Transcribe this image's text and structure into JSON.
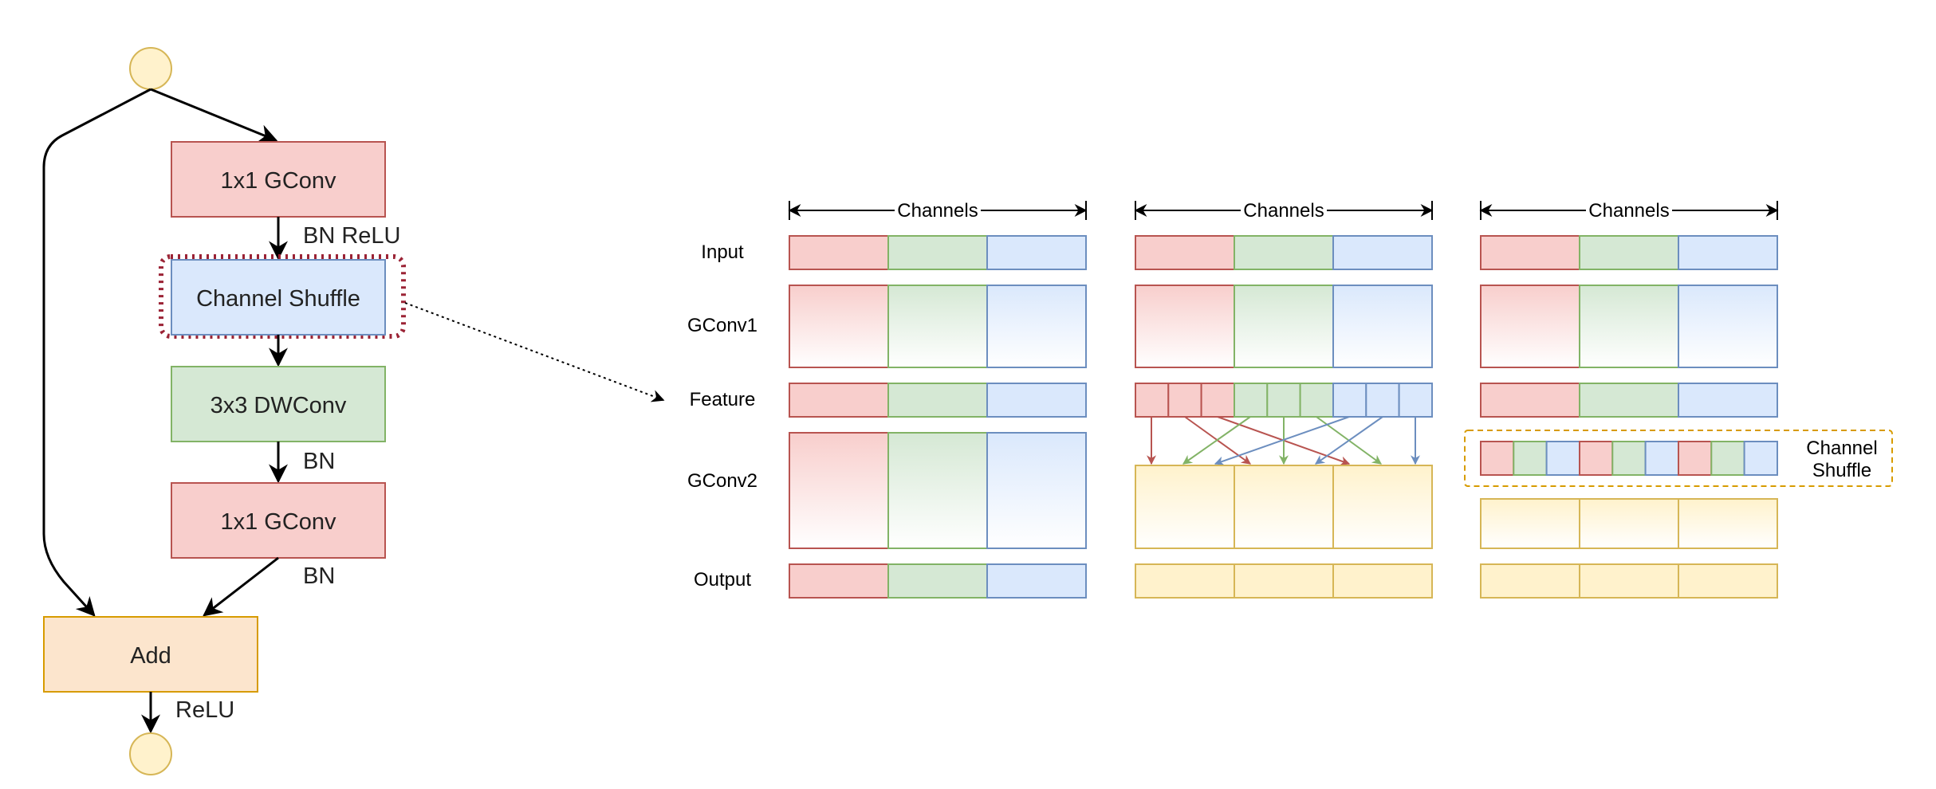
{
  "flow": {
    "gconv1_label": "1x1 GConv",
    "bn_relu_label": "BN ReLU",
    "channel_shuffle_label": "Channel Shuffle",
    "dwconv_label": "3x3 DWConv",
    "bn_label_1": "BN",
    "gconv2_label": "1x1 GConv",
    "bn_label_2": "BN",
    "add_label": "Add",
    "relu_label": "ReLU"
  },
  "rows": {
    "input": "Input",
    "gconv1": "GConv1",
    "feature": "Feature",
    "gconv2": "GConv2",
    "output": "Output"
  },
  "panels": [
    {
      "channels_label": "Channels"
    },
    {
      "channels_label": "Channels"
    },
    {
      "channels_label": "Channels"
    }
  ],
  "shuffle_box": {
    "line1": "Channel",
    "line2": "Shuffle"
  },
  "colors": {
    "red_fill": "#f8cecc",
    "red_stroke": "#b85450",
    "green_fill": "#d5e8d4",
    "green_stroke": "#82b366",
    "blue_fill": "#dae8fc",
    "blue_stroke": "#6c8ebf",
    "yellow_fill": "#fff2cc",
    "yellow_stroke": "#d6b656",
    "orange_fill": "#fce5cd",
    "orange_stroke": "#d79b00",
    "highlight": "#9b2335"
  }
}
